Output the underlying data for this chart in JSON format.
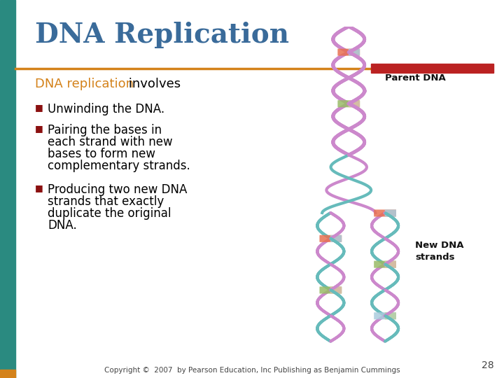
{
  "title": "DNA Replication",
  "title_color": "#3A6B9A",
  "title_fontsize": 28,
  "left_bar_color": "#2A8A80",
  "orange_line_color": "#D4821A",
  "red_bar_color": "#BB2222",
  "highlight_text": "DNA replication",
  "highlight_color": "#D4821A",
  "body_text_color": "#000000",
  "bullet_color": "#8B1010",
  "intro_suffix": " involves",
  "bullets": [
    "Unwinding the DNA.",
    "Pairing the bases in\neach strand with new\nbases to form new\ncomplementary strands.",
    "Producing two new DNA\nstrands that exactly\nduplicate the original\nDNA."
  ],
  "label_parent": "Parent DNA",
  "label_new": "New DNA\nstrands",
  "page_number": "28",
  "copyright_text": "Copyright ©  2007  by Pearson Education, Inc Publishing as Benjamin Cummings",
  "background_color": "#FFFFFF",
  "helix_color_purple": "#CC88CC",
  "helix_color_teal": "#66BBBB",
  "base_colors": [
    "#E87050",
    "#99BB66",
    "#AACCDD",
    "#DDBBAA",
    "#B8D0A0"
  ]
}
